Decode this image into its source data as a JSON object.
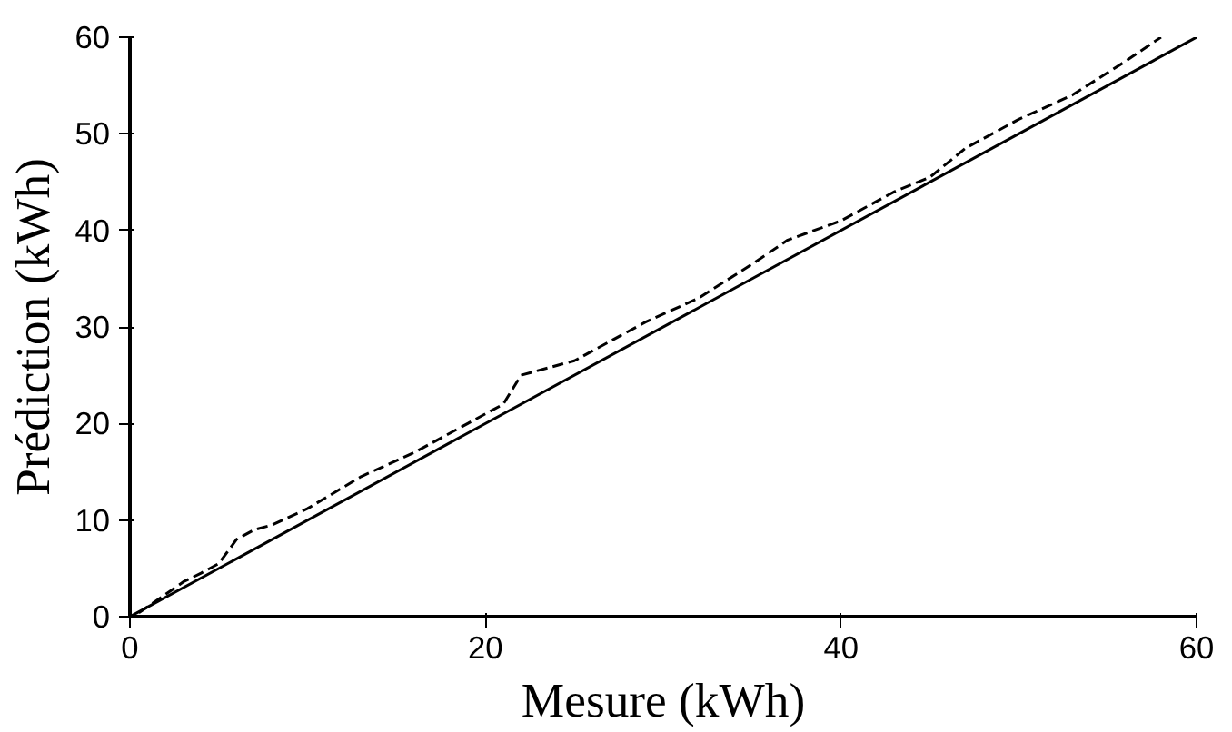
{
  "chart_data": {
    "type": "line",
    "xlabel": "Mesure (kWh)",
    "ylabel": "Prédiction (kWh)",
    "xlim": [
      0,
      60
    ],
    "ylim": [
      0,
      60
    ],
    "xticks": [
      0,
      20,
      40,
      60
    ],
    "yticks": [
      0,
      10,
      20,
      30,
      40,
      50,
      60
    ],
    "grid": false,
    "series": [
      {
        "color": "#000000",
        "line_style": "dashed",
        "x": [
          0.5,
          2,
          3,
          4,
          5,
          6,
          7,
          8,
          10,
          13,
          16,
          19,
          21,
          22,
          25,
          27,
          29,
          32,
          35,
          37,
          40,
          43,
          45,
          47,
          50,
          53,
          56,
          58
        ],
        "values": [
          0.4,
          2.3,
          3.6,
          4.5,
          5.5,
          8,
          9,
          9.5,
          11.2,
          14.5,
          17,
          20,
          22,
          25,
          26.5,
          28.5,
          30.5,
          33,
          36.5,
          39,
          41,
          44,
          45.5,
          48.5,
          51.5,
          54,
          57.5,
          60
        ]
      },
      {
        "color": "#000000",
        "line_style": "solid",
        "x": [
          0,
          60
        ],
        "values": [
          0,
          60
        ]
      }
    ]
  }
}
